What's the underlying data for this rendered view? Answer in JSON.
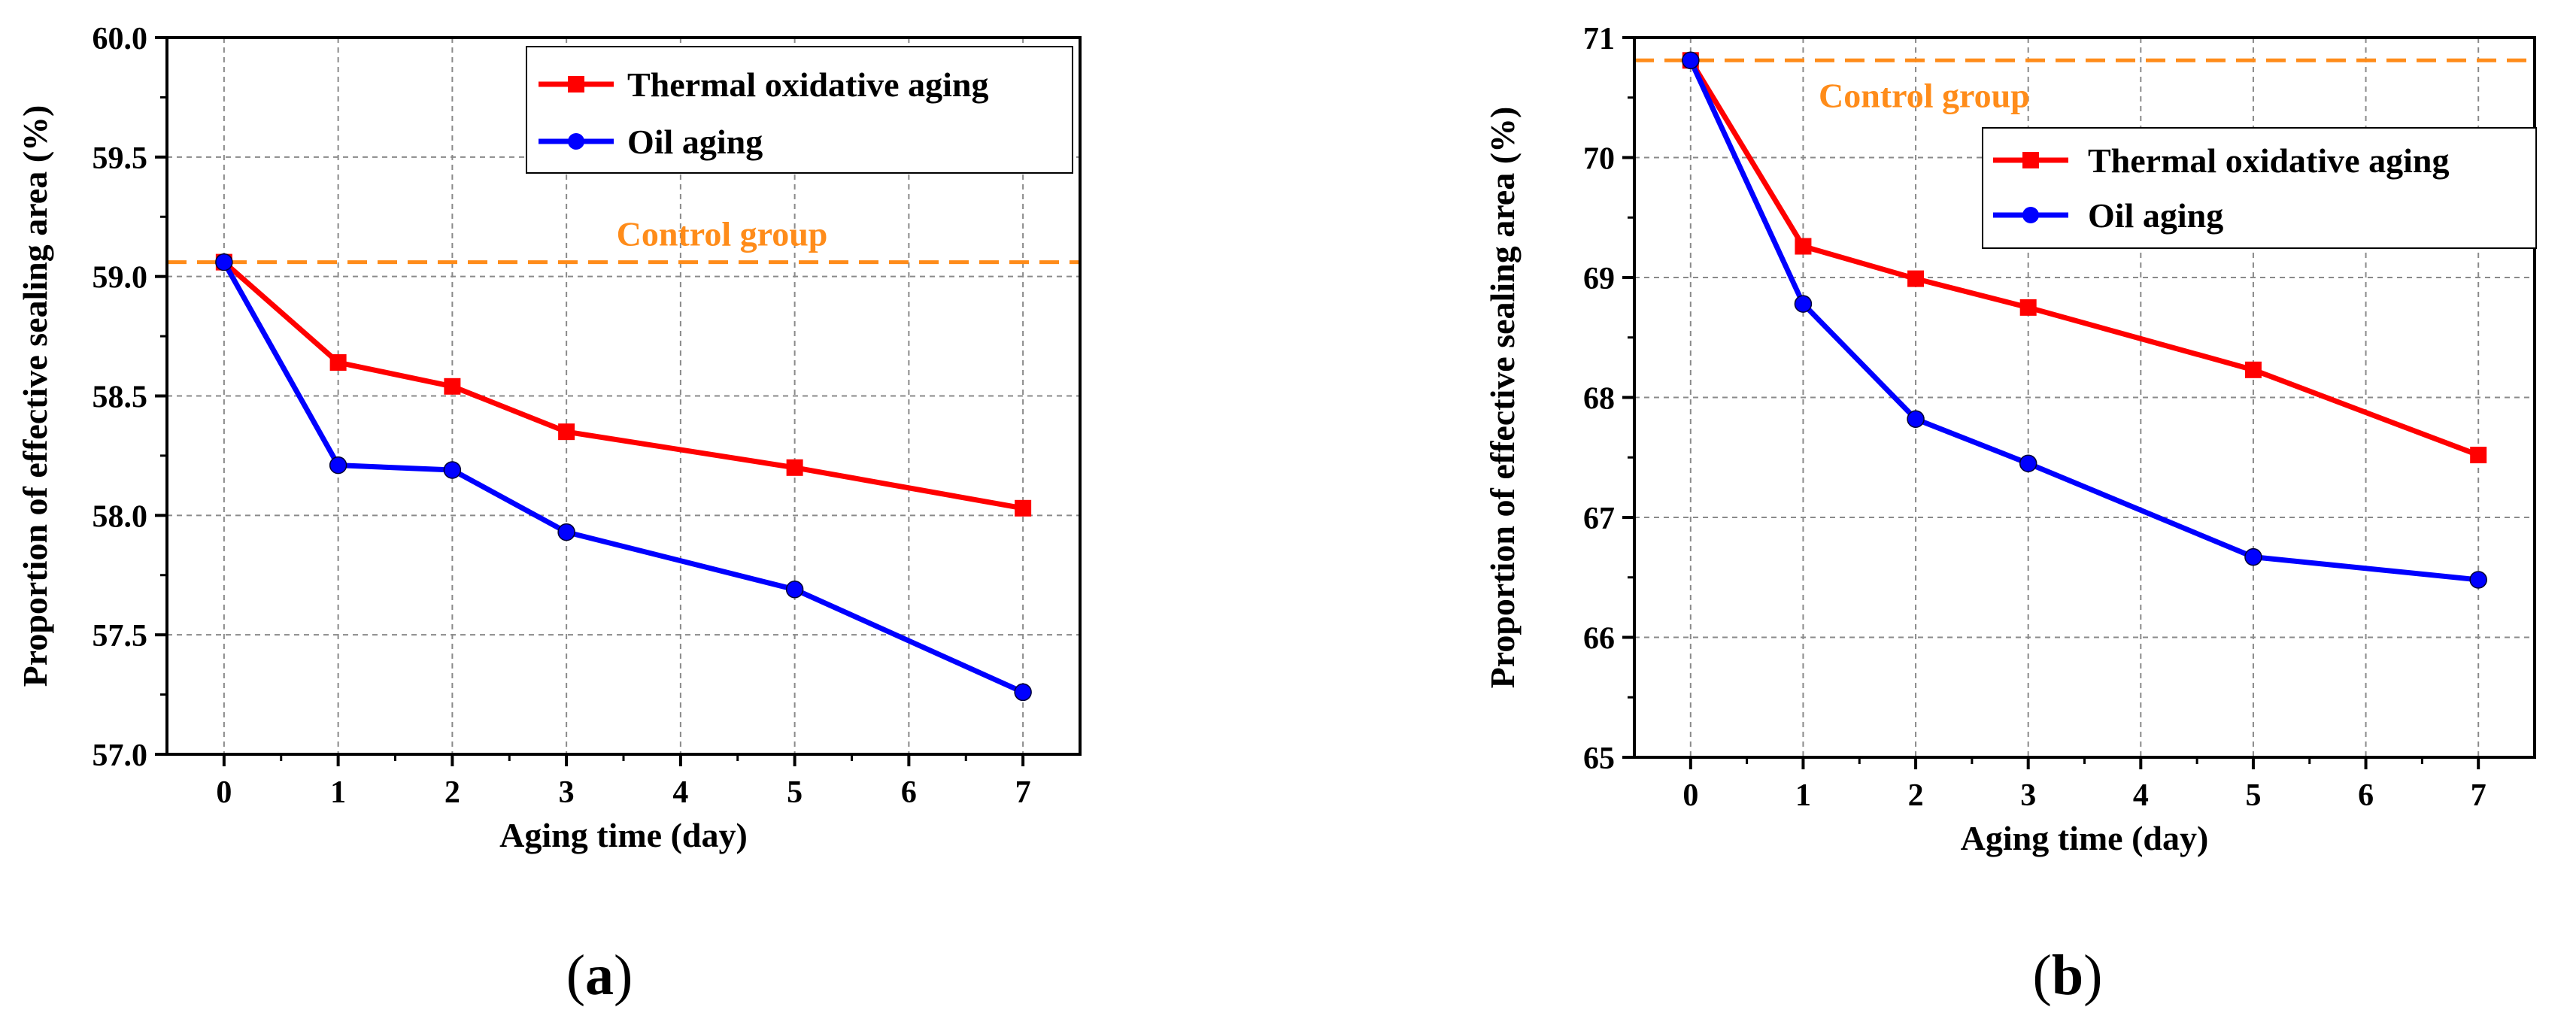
{
  "chart_data": [
    {
      "type": "line",
      "panel_label": "a",
      "xlabel": "Aging time (day)",
      "ylabel": "Proportion of effective sealing area (%)",
      "xlim": [
        -0.5,
        7.5
      ],
      "ylim": [
        57.0,
        60.0
      ],
      "x_ticks": [
        0,
        1,
        2,
        3,
        4,
        5,
        6,
        7
      ],
      "x_tick_labels": [
        "0",
        "1",
        "2",
        "3",
        "4",
        "5",
        "6",
        "7"
      ],
      "y_ticks": [
        57.0,
        57.5,
        58.0,
        58.5,
        59.0,
        59.5,
        60.0
      ],
      "y_tick_labels": [
        "57.0",
        "57.5",
        "58.0",
        "58.5",
        "59.0",
        "59.5",
        "60.0"
      ],
      "grid": true,
      "legend_position": "top-right",
      "series": [
        {
          "name": "Thermal oxidative aging",
          "color": "#ff0000",
          "marker": "square",
          "x": [
            0,
            1,
            2,
            3,
            5,
            7
          ],
          "values": [
            59.06,
            58.64,
            58.54,
            58.35,
            58.2,
            58.03
          ]
        },
        {
          "name": "Oil aging",
          "color": "#0000ff",
          "marker": "circle",
          "x": [
            0,
            1,
            2,
            3,
            5,
            7
          ],
          "values": [
            59.06,
            58.21,
            58.19,
            57.93,
            57.69,
            57.26
          ]
        }
      ],
      "control": {
        "label": "Control group",
        "value": 59.06,
        "color": "#ff8c1a",
        "label_position": "above-line-center"
      }
    },
    {
      "type": "line",
      "panel_label": "b",
      "xlabel": "Aging time (day)",
      "ylabel": "Proportion of effective sealing area (%)",
      "xlim": [
        -0.5,
        7.5
      ],
      "ylim": [
        65,
        71
      ],
      "x_ticks": [
        0,
        1,
        2,
        3,
        4,
        5,
        6,
        7
      ],
      "x_tick_labels": [
        "0",
        "1",
        "2",
        "3",
        "4",
        "5",
        "6",
        "7"
      ],
      "y_ticks": [
        65,
        66,
        67,
        68,
        69,
        70,
        71
      ],
      "y_tick_labels": [
        "65",
        "66",
        "67",
        "68",
        "69",
        "70",
        "71"
      ],
      "grid": true,
      "legend_position": "upper-right",
      "series": [
        {
          "name": "Thermal oxidative aging",
          "color": "#ff0000",
          "marker": "square",
          "x": [
            0,
            1,
            2,
            3,
            5,
            7
          ],
          "values": [
            70.81,
            69.26,
            68.99,
            68.75,
            68.23,
            67.52
          ]
        },
        {
          "name": "Oil aging",
          "color": "#0000ff",
          "marker": "circle",
          "x": [
            0,
            1,
            2,
            3,
            5,
            7
          ],
          "values": [
            70.81,
            68.78,
            67.82,
            67.45,
            66.67,
            66.48
          ]
        }
      ],
      "control": {
        "label": "Control group",
        "value": 70.81,
        "color": "#ff8c1a",
        "label_position": "below-line-left"
      }
    }
  ]
}
